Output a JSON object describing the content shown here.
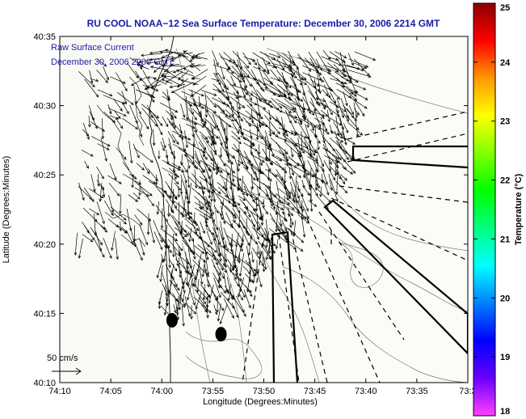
{
  "title": "RU COOL  NOAA−12  Sea Surface Temperature:  December 30, 2006 2214 GMT",
  "annotation_line1": "Raw Surface Current",
  "annotation_line2": "December 30, 2006 2200 GMT",
  "scale_label": "50 cm/s",
  "chart_data": {
    "type": "quiver",
    "xlabel": "Longitude (Degrees:Minutes)",
    "ylabel": "Latitude (Degrees:Minutes)",
    "x_ticks": [
      "74:10",
      "74:05",
      "74:00",
      "73:55",
      "73:50",
      "73:45",
      "73:40",
      "73:35",
      "73:3"
    ],
    "y_ticks": [
      "40:10",
      "40:15",
      "40:20",
      "40:25",
      "40:30",
      "40:35"
    ],
    "xlim": [
      74.1667,
      73.5
    ],
    "ylim": [
      40.1667,
      40.5833
    ],
    "colorbar": {
      "label": "Temperature (°C)",
      "ticks": [
        "18",
        "19",
        "20",
        "21",
        "22",
        "23",
        "24",
        "25"
      ],
      "range": [
        18,
        25
      ],
      "colors": [
        "#ff40ff",
        "#6a00ff",
        "#0000ff",
        "#0080ff",
        "#00ffff",
        "#00ff80",
        "#00ff00",
        "#80ff00",
        "#ffff00",
        "#ff9900",
        "#ff0000",
        "#8b0000"
      ]
    },
    "legend_vector_cm_s": 50,
    "markers": [
      {
        "lon": 73.9833,
        "lat": 40.2417
      },
      {
        "lon": 73.9033,
        "lat": 40.225
      }
    ]
  }
}
